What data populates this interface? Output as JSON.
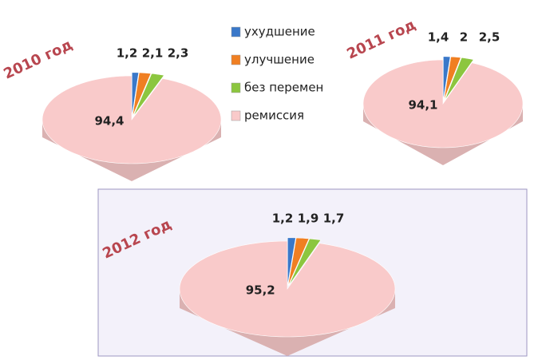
{
  "chart_data": [
    {
      "type": "pie",
      "title": "2010 год",
      "categories": [
        "ухудшение",
        "улучшение",
        "без перемен",
        "ремиссия"
      ],
      "colors": [
        "#3a78c9",
        "#f07f22",
        "#8cc63f",
        "#f9caca"
      ],
      "legend": "right",
      "values": [
        1.2,
        2.1,
        2.3,
        94.4
      ],
      "value_labels": [
        "1,2",
        "2,1",
        "2,3",
        "94,4"
      ]
    },
    {
      "type": "pie",
      "title": "2011 год",
      "values": [
        1.4,
        2,
        2.5,
        94.1
      ],
      "value_labels": [
        "1,4",
        "2",
        "2,5",
        "94,1"
      ]
    },
    {
      "type": "pie",
      "title": "2012 год",
      "values": [
        1.2,
        1.9,
        1.7,
        95.2
      ],
      "value_labels": [
        "1,2",
        "1,9",
        "1,7",
        "95,2"
      ]
    }
  ]
}
